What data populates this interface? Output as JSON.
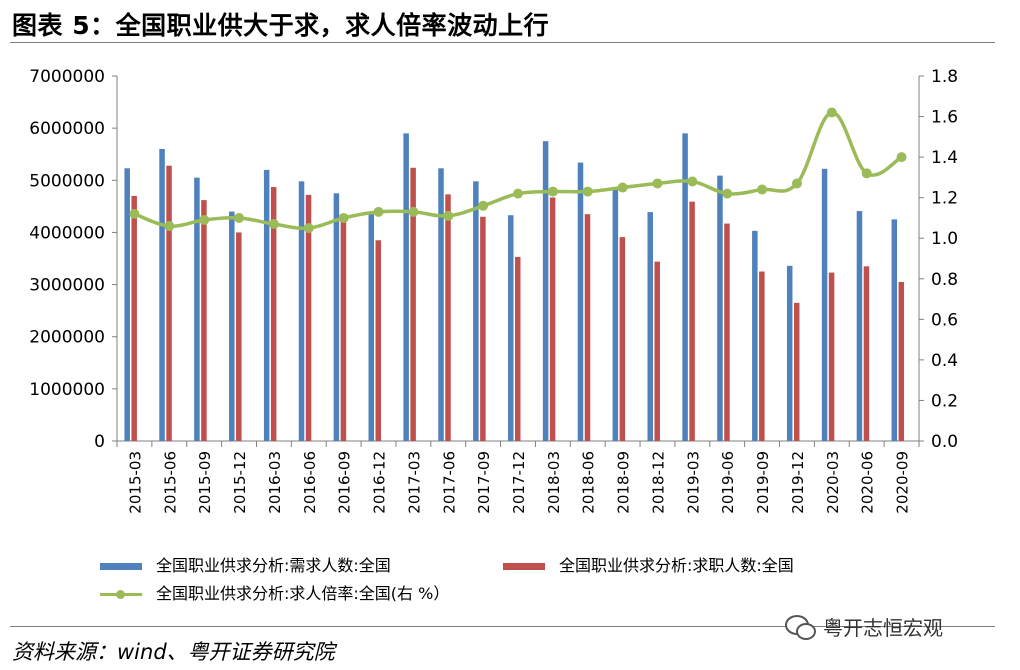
{
  "header": {
    "title": "图表 5：全国职业供大于求，求人倍率波动上行"
  },
  "chart_data": {
    "type": "bar+line",
    "categories": [
      "2015-03",
      "2015-06",
      "2015-09",
      "2015-12",
      "2016-03",
      "2016-06",
      "2016-09",
      "2016-12",
      "2017-03",
      "2017-06",
      "2017-09",
      "2017-12",
      "2018-03",
      "2018-06",
      "2018-09",
      "2018-12",
      "2019-03",
      "2019-06",
      "2019-09",
      "2019-12",
      "2020-03",
      "2020-06",
      "2020-09"
    ],
    "series": [
      {
        "name": "全国职业供求分析:需求人数:全国",
        "type": "bar",
        "axis": "left",
        "color": "#4f81bd",
        "values": [
          5230000,
          5600000,
          5050000,
          4400000,
          5200000,
          4980000,
          4750000,
          4400000,
          5900000,
          5230000,
          4980000,
          4330000,
          5750000,
          5340000,
          4850000,
          4390000,
          5900000,
          5090000,
          4030000,
          3360000,
          5220000,
          4410000,
          4250000
        ]
      },
      {
        "name": "全国职业供求分析:求职人数:全国",
        "type": "bar",
        "axis": "left",
        "color": "#c0504d",
        "values": [
          4700000,
          5280000,
          4620000,
          4000000,
          4870000,
          4720000,
          4300000,
          3850000,
          5240000,
          4730000,
          4300000,
          3530000,
          4670000,
          4350000,
          3910000,
          3440000,
          4590000,
          4170000,
          3250000,
          2650000,
          3230000,
          3350000,
          3050000
        ]
      },
      {
        "name": "全国职业供求分析:求人倍率:全国(右 %）",
        "type": "line",
        "axis": "right",
        "color": "#9bbb59",
        "values": [
          1.12,
          1.06,
          1.09,
          1.1,
          1.07,
          1.05,
          1.1,
          1.13,
          1.13,
          1.11,
          1.16,
          1.22,
          1.23,
          1.23,
          1.25,
          1.27,
          1.28,
          1.22,
          1.24,
          1.27,
          1.62,
          1.32,
          1.4
        ]
      }
    ],
    "left_axis": {
      "min": 0,
      "max": 7000000,
      "step": 1000000,
      "ticks": [
        "0",
        "1000000",
        "2000000",
        "3000000",
        "4000000",
        "5000000",
        "6000000",
        "7000000"
      ]
    },
    "right_axis": {
      "min": 0,
      "max": 1.8,
      "step": 0.2,
      "ticks": [
        "0.0",
        "0.2",
        "0.4",
        "0.6",
        "0.8",
        "1.0",
        "1.2",
        "1.4",
        "1.6",
        "1.8"
      ]
    },
    "legend_position": "bottom"
  },
  "legend": {
    "demand": "全国职业供求分析:需求人数:全国",
    "supply": "全国职业供求分析:求职人数:全国",
    "ratio": "全国职业供求分析:求人倍率:全国(右 %）"
  },
  "footer": {
    "source": "资料来源：wind、粤开证券研究院",
    "watermark": "粤开志恒宏观"
  }
}
